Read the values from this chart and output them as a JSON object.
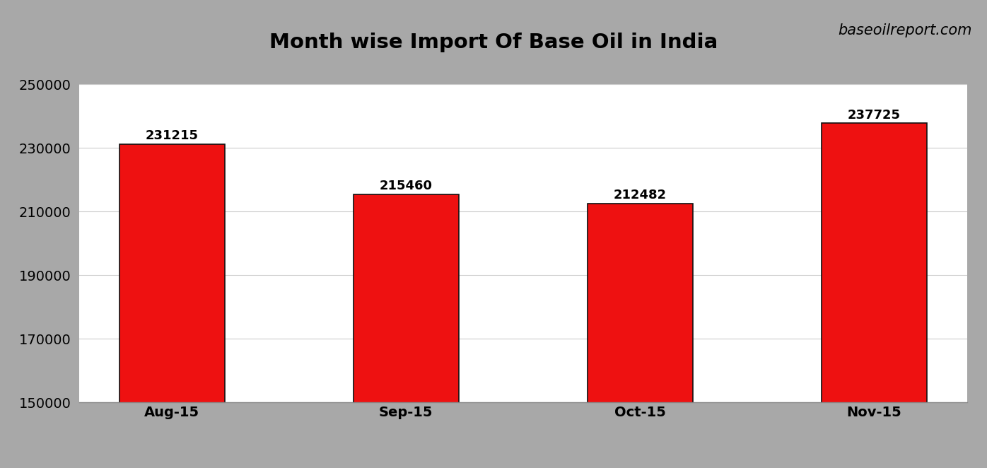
{
  "categories": [
    "Aug-15",
    "Sep-15",
    "Oct-15",
    "Nov-15"
  ],
  "values": [
    231215,
    215460,
    212482,
    237725
  ],
  "bar_color": "#ee1111",
  "bar_edgecolor": "#111111",
  "title": "Month wise Import Of Base Oil in India",
  "title_fontsize": 21,
  "title_fontweight": "bold",
  "watermark": "baseoilreport.com",
  "watermark_fontsize": 15,
  "ylim": [
    150000,
    250000
  ],
  "yticks": [
    150000,
    170000,
    190000,
    210000,
    230000,
    250000
  ],
  "background_color": "#a8a8a8",
  "plot_bg_color": "#ffffff",
  "bar_width": 0.45,
  "label_fontsize": 13,
  "tick_fontsize": 14,
  "gridcolor": "#cccccc"
}
